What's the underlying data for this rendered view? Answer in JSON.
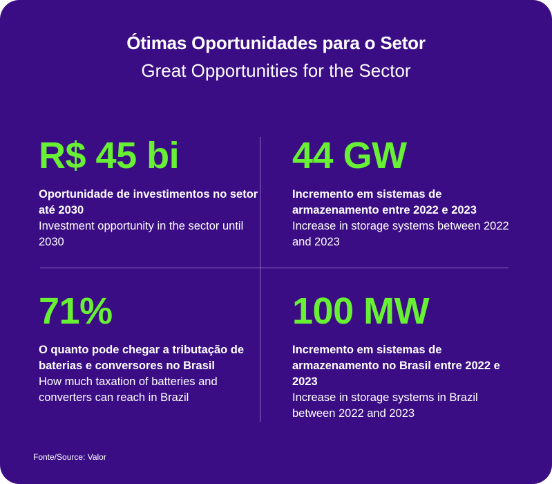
{
  "header": {
    "title_pt": "Ótimas Oportunidades para o Setor",
    "title_en": "Great Opportunities for the Sector"
  },
  "stats": [
    {
      "value": "R$ 45 bi",
      "desc_pt": "Oportunidade de investimentos no setor até 2030",
      "desc_en": "Investment opportunity in the sector until 2030"
    },
    {
      "value": "44 GW",
      "desc_pt": "Incremento em sistemas de armazenamento entre 2022 e 2023",
      "desc_en": "Increase in storage systems between 2022 and 2023"
    },
    {
      "value": "71%",
      "desc_pt": "O quanto pode chegar a tributação de baterias e conversores no Brasil",
      "desc_en": "How much taxation of batteries and converters can reach in Brazil"
    },
    {
      "value": "100 MW",
      "desc_pt": "Incremento em sistemas de armazenamento no Brasil entre 2022 e 2023",
      "desc_en": "Increase in storage systems in Brazil between 2022 and 2023"
    }
  ],
  "footer": {
    "source": "Fonte/Source: Valor"
  },
  "colors": {
    "background": "#3b0d84",
    "accent": "#67f034",
    "text": "#ffffff"
  }
}
